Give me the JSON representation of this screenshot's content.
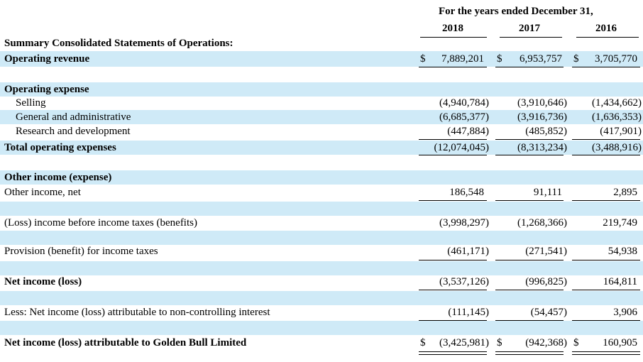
{
  "header": {
    "period_label": "For the years ended December 31,",
    "years": [
      "2018",
      "2017",
      "2016"
    ]
  },
  "section_title": "Summary Consolidated Statements of Operations:",
  "rows": {
    "operating_revenue": {
      "label": "Operating revenue",
      "values": [
        "7,889,201",
        "6,953,757",
        "3,705,770"
      ]
    },
    "operating_expense": {
      "label": "Operating expense"
    },
    "selling": {
      "label": "Selling",
      "values": [
        "(4,940,784)",
        "(3,910,646)",
        "(1,434,662)"
      ]
    },
    "general_admin": {
      "label": "General and administrative",
      "values": [
        "(6,685,377)",
        "(3,916,736)",
        "(1,636,353)"
      ]
    },
    "research_dev": {
      "label": "Research and development",
      "values": [
        "(447,884)",
        "(485,852)",
        "(417,901)"
      ]
    },
    "total_operating_expenses": {
      "label": "Total operating expenses",
      "values": [
        "(12,074,045)",
        "(8,313,234)",
        "(3,488,916)"
      ]
    },
    "other_income_expense": {
      "label": "Other income (expense)"
    },
    "other_income_net": {
      "label": "Other income, net",
      "values": [
        "186,548",
        "91,111",
        "2,895"
      ]
    },
    "loss_before_tax": {
      "label": "(Loss) income before income taxes (benefits)",
      "values": [
        "(3,998,297)",
        "(1,268,366)",
        "219,749"
      ]
    },
    "provision_tax": {
      "label": "Provision (benefit) for income taxes",
      "values": [
        "(461,171)",
        "(271,541)",
        "54,938"
      ]
    },
    "net_income": {
      "label": "Net income (loss)",
      "values": [
        "(3,537,126)",
        "(996,825)",
        "164,811"
      ]
    },
    "non_controlling": {
      "label": "Less: Net income (loss) attributable to non-controlling interest",
      "values": [
        "(111,145)",
        "(54,457)",
        "3,906"
      ]
    },
    "attributable_golden_bull": {
      "label": "Net  income (loss) attributable to Golden Bull Limited",
      "values": [
        "(3,425,981)",
        "(942,368)",
        "160,905"
      ]
    }
  },
  "currency_symbol": "$"
}
